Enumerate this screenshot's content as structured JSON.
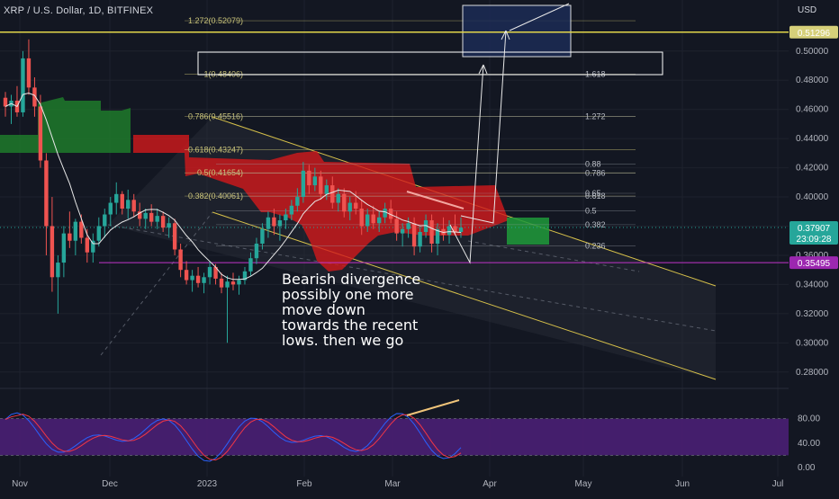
{
  "header": {
    "symbol": "XRP / U.S. Dollar, 1D, BITFINEX",
    "currency": "USD"
  },
  "annotation": {
    "text": "Bearish divergence\npossibly one more\nmove down\ntowards the recent\nlows. then we go"
  },
  "colors": {
    "background": "#131722",
    "up": "#26a69a",
    "down": "#ef5350",
    "fib_line": "#d6d07a",
    "channel": "#d6c04a",
    "current_price": "#26a69a",
    "level_line": "#9c27b0",
    "rsi_band": "#4a1f74",
    "stoch_k": "#2962ff",
    "stoch_d": "#f23645"
  },
  "chart_data": {
    "type": "candlestick",
    "title": "XRP / U.S. Dollar, 1D, BITFINEX",
    "ylim": [
      0.27,
      0.535
    ],
    "y_axis_ticks": [
      "0.50000",
      "0.48000",
      "0.46000",
      "0.44000",
      "0.42000",
      "0.40000",
      "0.38000",
      "0.36000",
      "0.34000",
      "0.32000",
      "0.30000",
      "0.28000"
    ],
    "x_axis_ticks": [
      "Nov",
      "Dec",
      "2023",
      "Feb",
      "Mar",
      "Apr",
      "May",
      "Jun",
      "Jul"
    ],
    "price_badges": [
      {
        "value": "0.37907",
        "sub": "23:09:28",
        "color": "#26a69a"
      },
      {
        "value": "0.35495",
        "color": "#9c27b0"
      },
      {
        "value": "0.51296",
        "color": "#d6d07a"
      }
    ],
    "fib_left": [
      {
        "label": "1.272(0.52079)",
        "value": 0.52079
      },
      {
        "label": "1(0.48406)",
        "value": 0.48406
      },
      {
        "label": "0.786(0.45516)",
        "value": 0.45516
      },
      {
        "label": "0.618(0.43247)",
        "value": 0.43247
      },
      {
        "label": "0.5(0.41654)",
        "value": 0.41654
      },
      {
        "label": "0.382(0.40061)",
        "value": 0.40061
      }
    ],
    "fib_right": [
      {
        "label": "1.618",
        "value": 0.48406
      },
      {
        "label": "1.272",
        "value": 0.45516
      },
      {
        "label": "0.88",
        "value": 0.4225
      },
      {
        "label": "0.786",
        "value": 0.4163
      },
      {
        "label": "0.65",
        "value": 0.4025
      },
      {
        "label": "0.618",
        "value": 0.4005
      },
      {
        "label": "0.5",
        "value": 0.3905
      },
      {
        "label": "0.382",
        "value": 0.381
      },
      {
        "label": "0.236",
        "value": 0.3665
      }
    ],
    "stoch_ticks": [
      "80.00",
      "40.00",
      "0.00"
    ],
    "candles": [
      [
        0.468,
        0.472,
        0.455,
        0.462
      ],
      [
        0.462,
        0.47,
        0.45,
        0.466
      ],
      [
        0.466,
        0.476,
        0.455,
        0.458
      ],
      [
        0.458,
        0.5,
        0.455,
        0.495
      ],
      [
        0.495,
        0.508,
        0.47,
        0.475
      ],
      [
        0.475,
        0.482,
        0.455,
        0.462
      ],
      [
        0.462,
        0.47,
        0.42,
        0.425
      ],
      [
        0.425,
        0.43,
        0.36,
        0.38
      ],
      [
        0.38,
        0.4,
        0.335,
        0.345
      ],
      [
        0.345,
        0.36,
        0.32,
        0.355
      ],
      [
        0.355,
        0.38,
        0.345,
        0.375
      ],
      [
        0.375,
        0.39,
        0.365,
        0.37
      ],
      [
        0.37,
        0.385,
        0.36,
        0.383
      ],
      [
        0.383,
        0.388,
        0.368,
        0.372
      ],
      [
        0.372,
        0.378,
        0.355,
        0.362
      ],
      [
        0.362,
        0.375,
        0.355,
        0.37
      ],
      [
        0.37,
        0.386,
        0.366,
        0.38
      ],
      [
        0.38,
        0.392,
        0.372,
        0.388
      ],
      [
        0.388,
        0.4,
        0.38,
        0.396
      ],
      [
        0.396,
        0.41,
        0.388,
        0.402
      ],
      [
        0.402,
        0.404,
        0.388,
        0.392
      ],
      [
        0.392,
        0.405,
        0.385,
        0.398
      ],
      [
        0.398,
        0.402,
        0.386,
        0.39
      ],
      [
        0.39,
        0.396,
        0.38,
        0.385
      ],
      [
        0.385,
        0.392,
        0.378,
        0.389
      ],
      [
        0.389,
        0.395,
        0.38,
        0.383
      ],
      [
        0.383,
        0.392,
        0.378,
        0.387
      ],
      [
        0.387,
        0.39,
        0.376,
        0.379
      ],
      [
        0.379,
        0.386,
        0.372,
        0.382
      ],
      [
        0.382,
        0.385,
        0.36,
        0.364
      ],
      [
        0.364,
        0.368,
        0.345,
        0.35
      ],
      [
        0.35,
        0.356,
        0.34,
        0.343
      ],
      [
        0.343,
        0.35,
        0.335,
        0.346
      ],
      [
        0.346,
        0.352,
        0.338,
        0.341
      ],
      [
        0.341,
        0.348,
        0.334,
        0.345
      ],
      [
        0.345,
        0.356,
        0.34,
        0.352
      ],
      [
        0.352,
        0.354,
        0.34,
        0.344
      ],
      [
        0.344,
        0.348,
        0.334,
        0.338
      ],
      [
        0.338,
        0.346,
        0.3,
        0.342
      ],
      [
        0.342,
        0.348,
        0.336,
        0.34
      ],
      [
        0.34,
        0.346,
        0.333,
        0.343
      ],
      [
        0.343,
        0.352,
        0.34,
        0.349
      ],
      [
        0.349,
        0.362,
        0.346,
        0.358
      ],
      [
        0.358,
        0.372,
        0.354,
        0.368
      ],
      [
        0.368,
        0.382,
        0.364,
        0.378
      ],
      [
        0.378,
        0.39,
        0.372,
        0.386
      ],
      [
        0.386,
        0.392,
        0.374,
        0.38
      ],
      [
        0.38,
        0.388,
        0.37,
        0.384
      ],
      [
        0.384,
        0.392,
        0.378,
        0.388
      ],
      [
        0.388,
        0.398,
        0.384,
        0.394
      ],
      [
        0.394,
        0.406,
        0.39,
        0.4
      ],
      [
        0.4,
        0.424,
        0.396,
        0.418
      ],
      [
        0.418,
        0.422,
        0.402,
        0.408
      ],
      [
        0.408,
        0.42,
        0.404,
        0.414
      ],
      [
        0.414,
        0.418,
        0.398,
        0.402
      ],
      [
        0.402,
        0.412,
        0.398,
        0.408
      ],
      [
        0.408,
        0.414,
        0.392,
        0.396
      ],
      [
        0.396,
        0.406,
        0.39,
        0.402
      ],
      [
        0.402,
        0.406,
        0.386,
        0.39
      ],
      [
        0.39,
        0.4,
        0.384,
        0.396
      ],
      [
        0.396,
        0.404,
        0.388,
        0.392
      ],
      [
        0.392,
        0.398,
        0.374,
        0.38
      ],
      [
        0.38,
        0.392,
        0.376,
        0.388
      ],
      [
        0.388,
        0.394,
        0.378,
        0.382
      ],
      [
        0.382,
        0.39,
        0.376,
        0.386
      ],
      [
        0.386,
        0.396,
        0.382,
        0.392
      ],
      [
        0.392,
        0.398,
        0.382,
        0.385
      ],
      [
        0.385,
        0.39,
        0.37,
        0.375
      ],
      [
        0.375,
        0.382,
        0.366,
        0.378
      ],
      [
        0.378,
        0.386,
        0.372,
        0.382
      ],
      [
        0.382,
        0.386,
        0.36,
        0.366
      ],
      [
        0.366,
        0.38,
        0.362,
        0.376
      ],
      [
        0.376,
        0.388,
        0.372,
        0.384
      ],
      [
        0.384,
        0.388,
        0.362,
        0.368
      ],
      [
        0.368,
        0.382,
        0.36,
        0.378
      ],
      [
        0.378,
        0.386,
        0.37,
        0.374
      ],
      [
        0.374,
        0.384,
        0.368,
        0.38
      ],
      [
        0.38,
        0.388,
        0.374,
        0.376
      ],
      [
        0.376,
        0.386,
        0.372,
        0.379
      ]
    ]
  }
}
